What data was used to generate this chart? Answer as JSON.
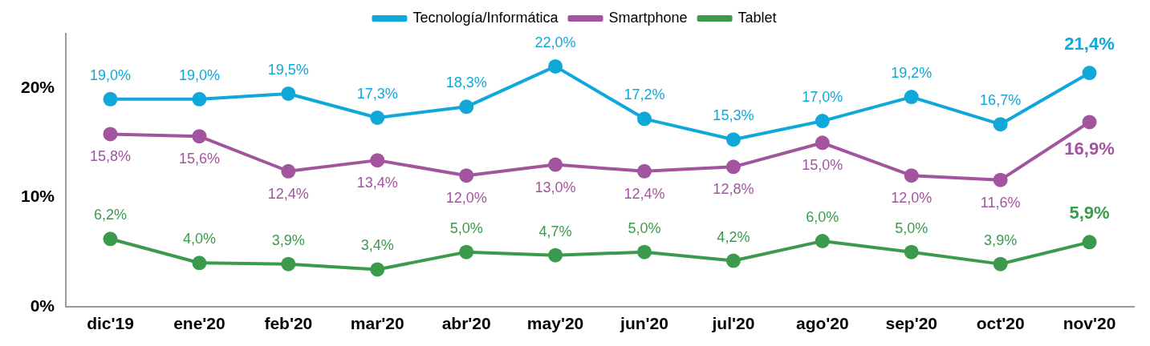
{
  "chart_data": {
    "type": "line",
    "categories": [
      "dic'19",
      "ene'20",
      "feb'20",
      "mar'20",
      "abr'20",
      "may'20",
      "jun'20",
      "jul'20",
      "ago'20",
      "sep'20",
      "oct'20",
      "nov'20"
    ],
    "series": [
      {
        "name": "Tecnología/Informática",
        "color": "#0fa8d8",
        "values": [
          19.0,
          19.0,
          19.5,
          17.3,
          18.3,
          22.0,
          17.2,
          15.3,
          17.0,
          19.2,
          16.7,
          21.4
        ],
        "value_labels": [
          "19,0%",
          "19,0%",
          "19,5%",
          "17,3%",
          "18,3%",
          "22,0%",
          "17,2%",
          "15,3%",
          "17,0%",
          "19,2%",
          "16,7%",
          "21,4%"
        ]
      },
      {
        "name": "Smartphone",
        "color": "#a2559e",
        "values": [
          15.8,
          15.6,
          12.4,
          13.4,
          12.0,
          13.0,
          12.4,
          12.8,
          15.0,
          12.0,
          11.6,
          16.9
        ],
        "value_labels": [
          "15,8%",
          "15,6%",
          "12,4%",
          "13,4%",
          "12,0%",
          "13,0%",
          "12,4%",
          "12,8%",
          "15,0%",
          "12,0%",
          "11,6%",
          "16,9%"
        ]
      },
      {
        "name": "Tablet",
        "color": "#3c9a4c",
        "values": [
          6.2,
          4.0,
          3.9,
          3.4,
          5.0,
          4.7,
          5.0,
          4.2,
          6.0,
          5.0,
          3.9,
          5.9
        ],
        "value_labels": [
          "6,2%",
          "4,0%",
          "3,9%",
          "3,4%",
          "5,0%",
          "4,7%",
          "5,0%",
          "4,2%",
          "6,0%",
          "5,0%",
          "3,9%",
          "5,9%"
        ]
      }
    ],
    "ylim": [
      0,
      25
    ],
    "yticks": [
      {
        "value": 0,
        "label": "0%"
      },
      {
        "value": 10,
        "label": "10%"
      },
      {
        "value": 20,
        "label": "20%"
      }
    ],
    "grid": false,
    "legend": "top",
    "marker": "circle",
    "line_style": "solid"
  }
}
